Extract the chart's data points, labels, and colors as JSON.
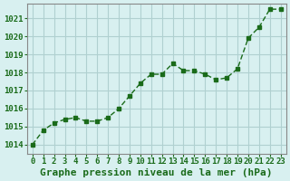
{
  "x": [
    0,
    1,
    2,
    3,
    4,
    5,
    6,
    7,
    8,
    9,
    10,
    11,
    12,
    13,
    14,
    15,
    16,
    17,
    18,
    19,
    20,
    21,
    22,
    23
  ],
  "y": [
    1014.0,
    1014.8,
    1015.2,
    1015.4,
    1015.5,
    1015.3,
    1015.3,
    1015.5,
    1016.0,
    1016.7,
    1017.4,
    1017.9,
    1017.9,
    1018.5,
    1018.1,
    1018.1,
    1017.9,
    1017.6,
    1017.7,
    1018.2,
    1019.9,
    1020.5,
    1021.5,
    1021.5
  ],
  "line_color": "#1a6b1a",
  "marker": "s",
  "marker_size": 3,
  "bg_color": "#d8f0f0",
  "grid_color": "#b0d0d0",
  "xlabel": "Graphe pression niveau de la mer (hPa)",
  "xlabel_color": "#1a6b1a",
  "xlabel_fontsize": 8,
  "tick_color": "#1a6b1a",
  "tick_fontsize": 6.5,
  "ylim": [
    1013.5,
    1021.8
  ],
  "xlim": [
    -0.5,
    23.5
  ],
  "yticks": [
    1014,
    1015,
    1016,
    1017,
    1018,
    1019,
    1020,
    1021
  ],
  "xticks": [
    0,
    1,
    2,
    3,
    4,
    5,
    6,
    7,
    8,
    9,
    10,
    11,
    12,
    13,
    14,
    15,
    16,
    17,
    18,
    19,
    20,
    21,
    22,
    23
  ]
}
